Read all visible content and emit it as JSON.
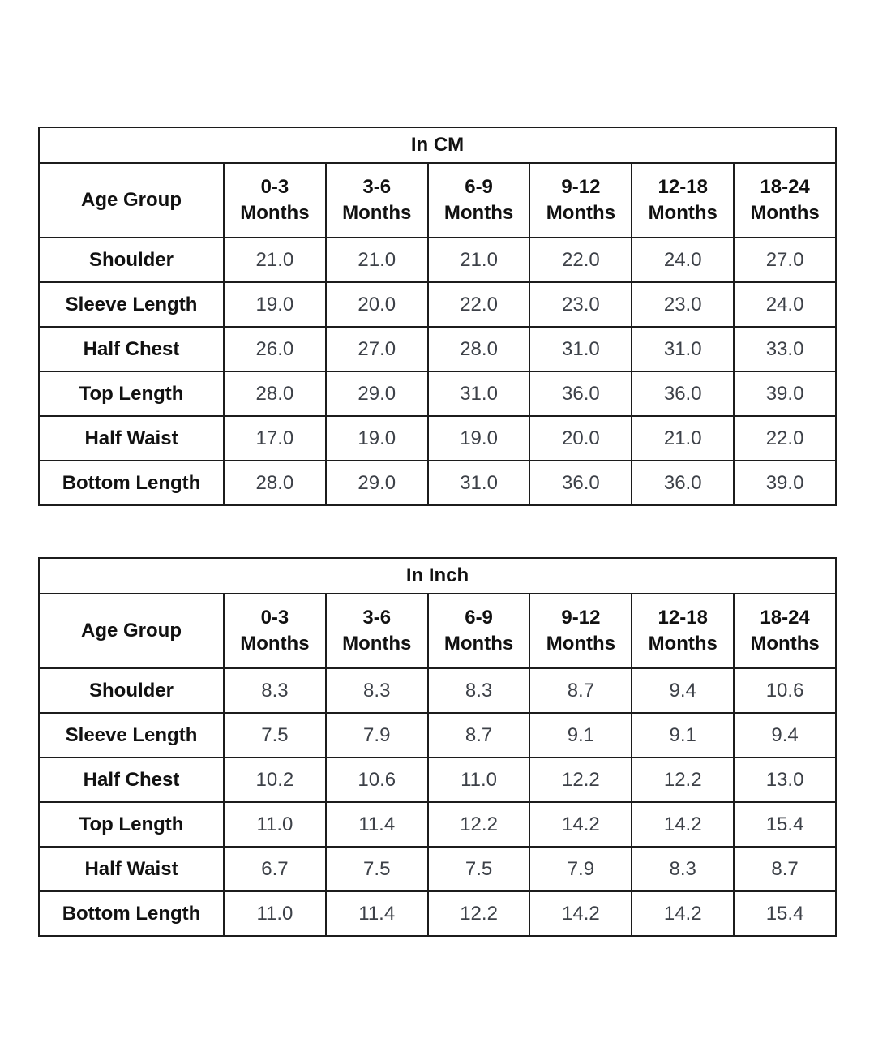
{
  "colors": {
    "border": "#1c1c1c",
    "heading_text": "#111111",
    "value_text": "#3d4148",
    "background": "#ffffff"
  },
  "chart_data": [
    {
      "type": "table",
      "title": "In CM",
      "corner_header": "Age Group",
      "column_headers": [
        {
          "range": "0-3",
          "unit": "Months"
        },
        {
          "range": "3-6",
          "unit": "Months"
        },
        {
          "range": "6-9",
          "unit": "Months"
        },
        {
          "range": "9-12",
          "unit": "Months"
        },
        {
          "range": "12-18",
          "unit": "Months"
        },
        {
          "range": "18-24",
          "unit": "Months"
        }
      ],
      "measurements": [
        {
          "label": "Shoulder",
          "values": [
            "21.0",
            "21.0",
            "21.0",
            "22.0",
            "24.0",
            "27.0"
          ]
        },
        {
          "label": "Sleeve Length",
          "values": [
            "19.0",
            "20.0",
            "22.0",
            "23.0",
            "23.0",
            "24.0"
          ]
        },
        {
          "label": "Half Chest",
          "values": [
            "26.0",
            "27.0",
            "28.0",
            "31.0",
            "31.0",
            "33.0"
          ]
        },
        {
          "label": "Top Length",
          "values": [
            "28.0",
            "29.0",
            "31.0",
            "36.0",
            "36.0",
            "39.0"
          ]
        },
        {
          "label": "Half Waist",
          "values": [
            "17.0",
            "19.0",
            "19.0",
            "20.0",
            "21.0",
            "22.0"
          ]
        },
        {
          "label": "Bottom Length",
          "values": [
            "28.0",
            "29.0",
            "31.0",
            "36.0",
            "36.0",
            "39.0"
          ]
        }
      ]
    },
    {
      "type": "table",
      "title": "In Inch",
      "corner_header": "Age Group",
      "column_headers": [
        {
          "range": "0-3",
          "unit": "Months"
        },
        {
          "range": "3-6",
          "unit": "Months"
        },
        {
          "range": "6-9",
          "unit": "Months"
        },
        {
          "range": "9-12",
          "unit": "Months"
        },
        {
          "range": "12-18",
          "unit": "Months"
        },
        {
          "range": "18-24",
          "unit": "Months"
        }
      ],
      "measurements": [
        {
          "label": "Shoulder",
          "values": [
            "8.3",
            "8.3",
            "8.3",
            "8.7",
            "9.4",
            "10.6"
          ]
        },
        {
          "label": "Sleeve Length",
          "values": [
            "7.5",
            "7.9",
            "8.7",
            "9.1",
            "9.1",
            "9.4"
          ]
        },
        {
          "label": "Half Chest",
          "values": [
            "10.2",
            "10.6",
            "11.0",
            "12.2",
            "12.2",
            "13.0"
          ]
        },
        {
          "label": "Top Length",
          "values": [
            "11.0",
            "11.4",
            "12.2",
            "14.2",
            "14.2",
            "15.4"
          ]
        },
        {
          "label": "Half Waist",
          "values": [
            "6.7",
            "7.5",
            "7.5",
            "7.9",
            "8.3",
            "8.7"
          ]
        },
        {
          "label": "Bottom Length",
          "values": [
            "11.0",
            "11.4",
            "12.2",
            "14.2",
            "14.2",
            "15.4"
          ]
        }
      ]
    }
  ]
}
